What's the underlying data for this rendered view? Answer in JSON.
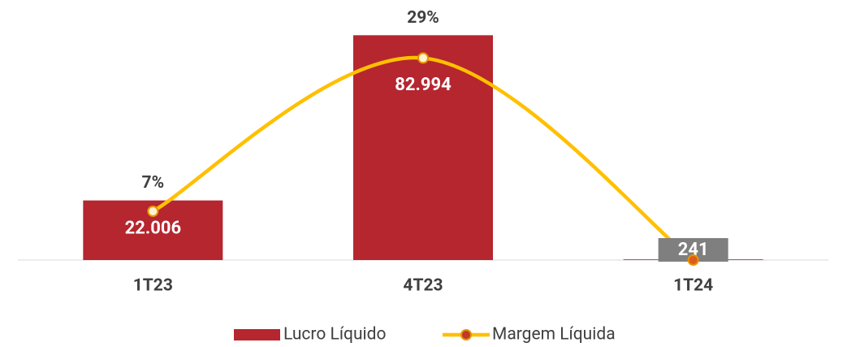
{
  "chart_data": {
    "type": "bar",
    "categories": [
      "1T23",
      "4T23",
      "1T24"
    ],
    "series": [
      {
        "name": "Lucro Líquido",
        "type": "bar",
        "color": "#b5262f",
        "values": [
          22006,
          82994,
          241
        ],
        "value_labels": [
          "22.006",
          "82.994",
          "241"
        ]
      },
      {
        "name": "Margem Líquida",
        "type": "line",
        "axis": "y2",
        "color": "#ffc000",
        "values": [
          7,
          29,
          0
        ],
        "value_labels": [
          "7%",
          "29%",
          null
        ]
      }
    ],
    "ylim": [
      0,
      90000
    ],
    "y2lim": [
      0,
      35
    ],
    "label_box_color": "#7f7f7f",
    "legend": "bottom"
  }
}
